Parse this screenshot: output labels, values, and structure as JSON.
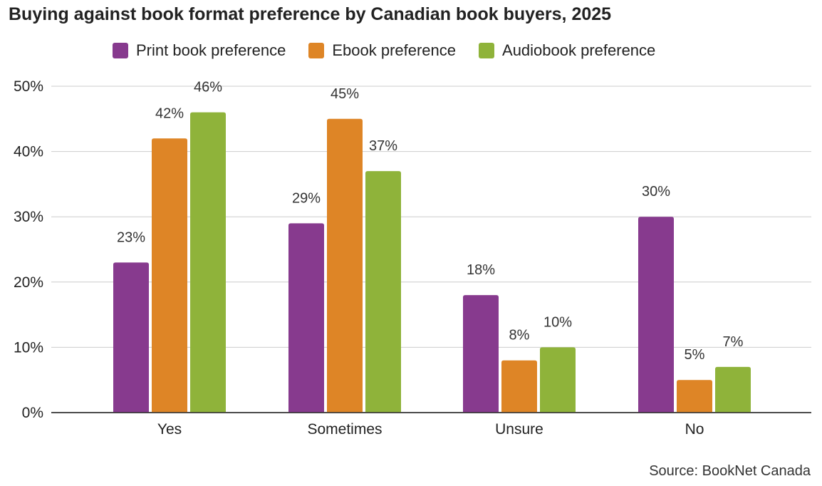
{
  "chart_data": {
    "type": "bar",
    "title": "Buying against book format preference by Canadian book buyers, 2025",
    "categories": [
      "Yes",
      "Sometimes",
      "Unsure",
      "No"
    ],
    "series": [
      {
        "name": "Print book preference",
        "color": "#873a8e",
        "values": [
          23,
          29,
          18,
          30
        ],
        "labels": [
          "23%",
          "29%",
          "18%",
          "30%"
        ]
      },
      {
        "name": "Ebook preference",
        "color": "#de8526",
        "values": [
          42,
          45,
          8,
          5
        ],
        "labels": [
          "42%",
          "45%",
          "8%",
          "5%"
        ]
      },
      {
        "name": "Audiobook preference",
        "color": "#8fb33a",
        "values": [
          46,
          37,
          10,
          7
        ],
        "labels": [
          "46%",
          "37%",
          "10%",
          "7%"
        ]
      }
    ],
    "y_ticks": [
      0,
      10,
      20,
      30,
      40,
      50
    ],
    "y_tick_labels": [
      "0%",
      "10%",
      "20%",
      "30%",
      "40%",
      "50%"
    ],
    "ylim": [
      0,
      50
    ],
    "grid": true,
    "legend_position": "top",
    "xlabel": "",
    "ylabel": ""
  },
  "source": "Source: BookNet Canada"
}
